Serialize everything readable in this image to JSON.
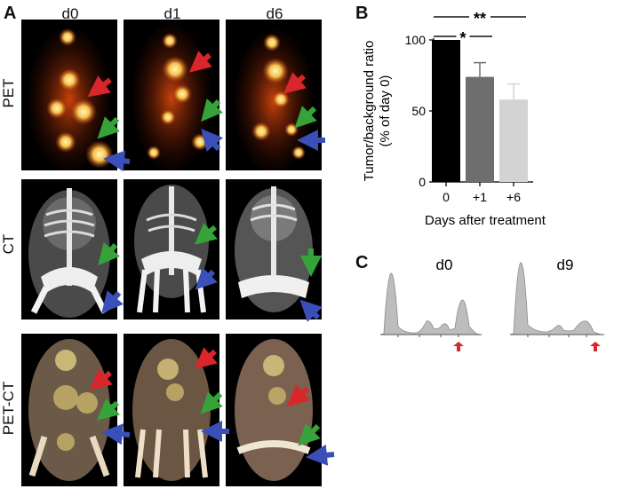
{
  "panels": {
    "a": {
      "letter": "A",
      "columns": [
        "d0",
        "d1",
        "d6"
      ],
      "rows": [
        "PET",
        "CT",
        "PET-CT"
      ]
    },
    "b": {
      "letter": "B"
    },
    "c": {
      "letter": "C",
      "labels": [
        "d0",
        "d9"
      ]
    }
  },
  "colors": {
    "red_arrow": "#d9262a",
    "green_arrow": "#36a33a",
    "blue_arrow": "#3a4fb8",
    "bar_0": "#000000",
    "bar_1": "#6e6e6e",
    "bar_6": "#d3d3d3",
    "histogram": "#bdbdbd"
  },
  "chart_data": [
    {
      "type": "bar",
      "panel": "B",
      "categories": [
        "0",
        "+1",
        "+6"
      ],
      "values": [
        100,
        74,
        58
      ],
      "error_upper": [
        0,
        10,
        11
      ],
      "xlabel": "Days after treatment",
      "ylabel": "Tumor/background ratio\n(% of day 0)",
      "ylabel_lines": [
        "Tumor/background ratio",
        "(% of day 0)"
      ],
      "yticks": [
        0,
        50,
        100
      ],
      "ylim": [
        0,
        125
      ],
      "significance": [
        {
          "from": "0",
          "to": "+6",
          "label": "**"
        },
        {
          "from": "0",
          "to": "+1",
          "label": "*"
        }
      ]
    },
    {
      "type": "area",
      "panel": "C",
      "histograms": [
        {
          "label": "d0"
        },
        {
          "label": "d9"
        }
      ]
    }
  ]
}
